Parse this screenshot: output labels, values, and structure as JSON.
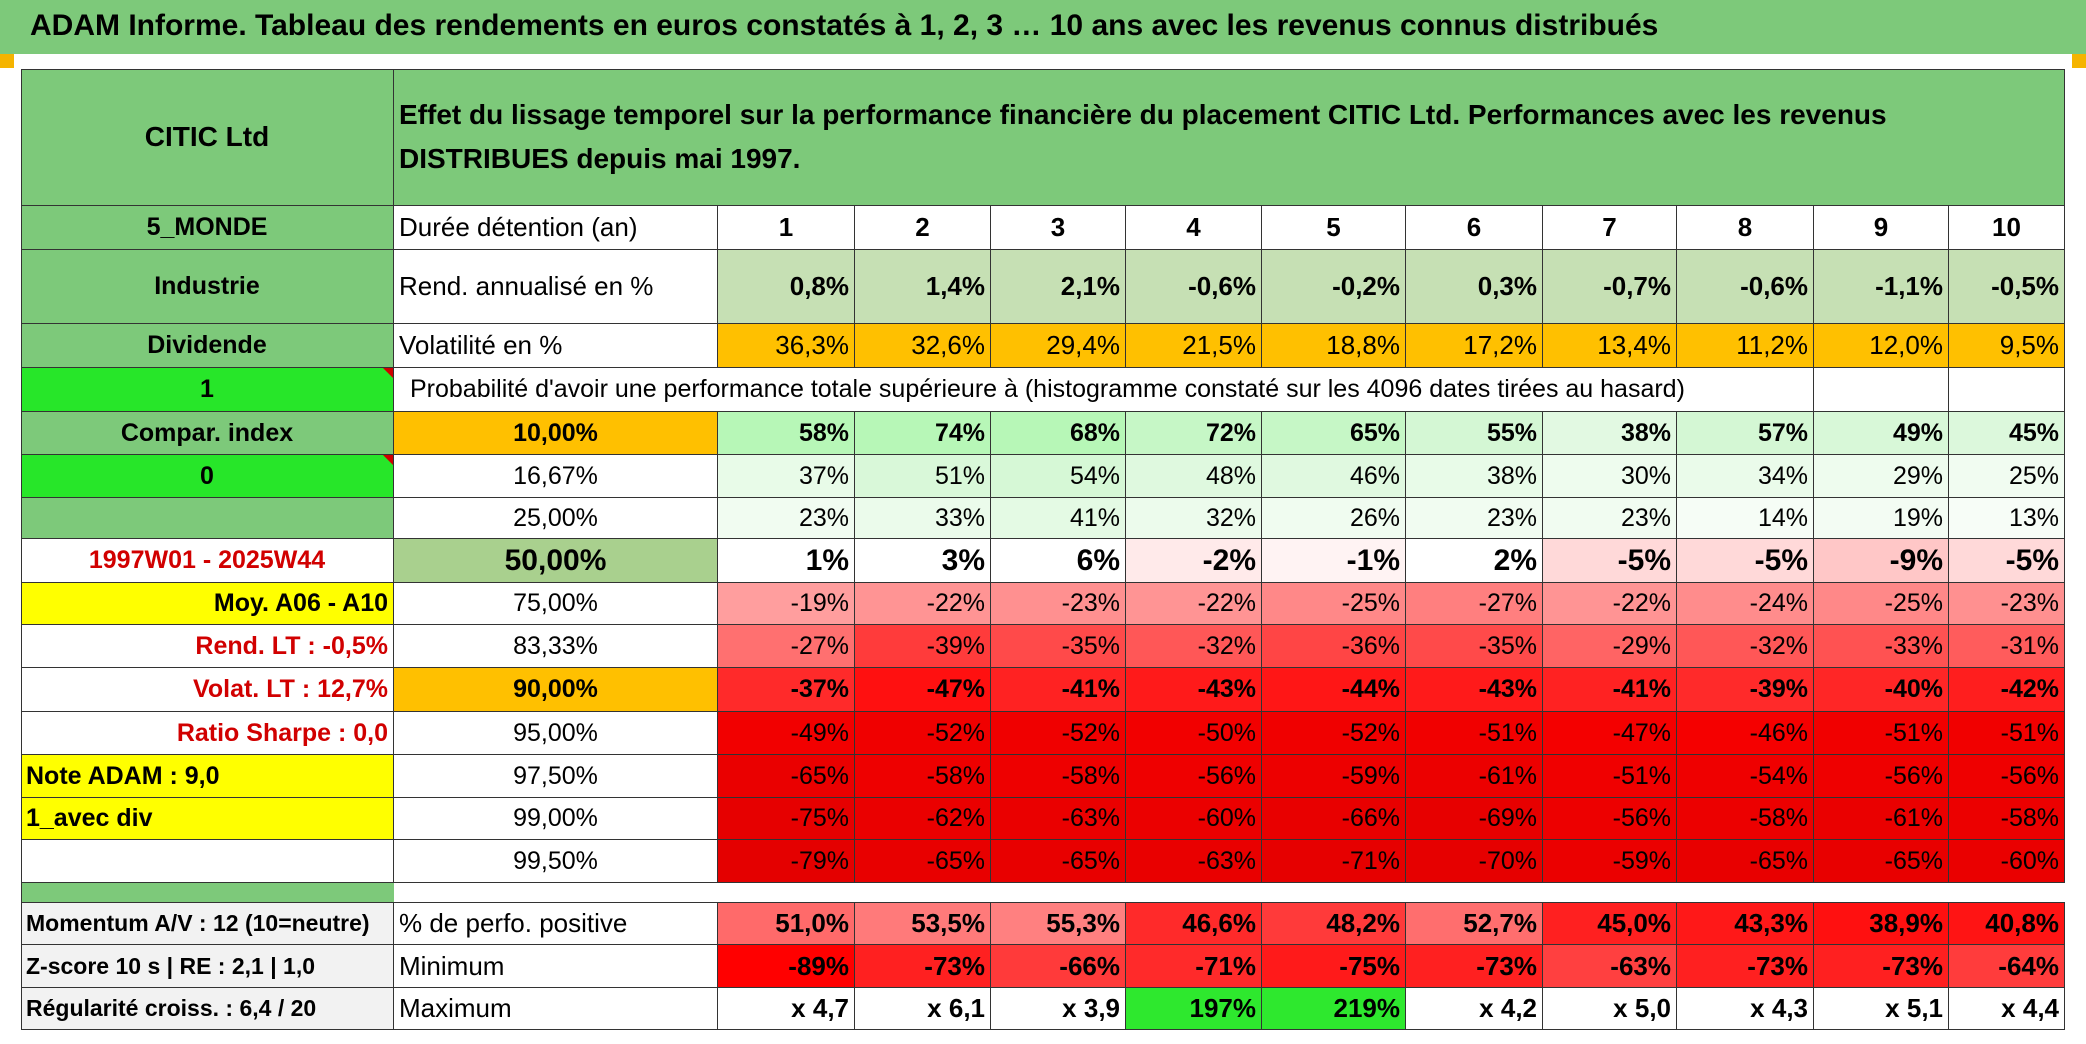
{
  "banner": {
    "title": "ADAM Informe. Tableau des rendements en euros constatés à 1, 2, 3 … 10 ans avec les revenus connus distribués"
  },
  "colors": {
    "green_header": "#7dc97a",
    "bright_green": "#27e629",
    "yellow": "#ffff00",
    "orange": "#ffc000",
    "red_strong": "#ff0000"
  },
  "left": {
    "name": "CITIC Ltd",
    "zone": "5_MONDE",
    "sector": "Industrie",
    "income": "Dividende",
    "flag1": "1",
    "compar": "Compar. index",
    "flag0": "0",
    "period": "1997W01 - 2025W44",
    "moy": "Moy. A06 - A10",
    "rend_lt": "Rend. LT :    -0,5%",
    "volat_lt": "Volat. LT :    12,7%",
    "sharpe": "Ratio Sharpe :    0,0",
    "note": "Note ADAM : 9,0",
    "variant": "1_avec div",
    "momentum": "Momentum A/V : 12 (10=neutre)",
    "zscore": "Z-score 10 s | RE : 2,1 | 1,0",
    "regularite": "Régularité croiss. : 6,4 / 20"
  },
  "header": {
    "description": "Effet du lissage temporel sur la performance financière du placement CITIC Ltd. Performances avec les revenus DISTRIBUES depuis mai 1997."
  },
  "labels": {
    "duree": "Durée détention (an)",
    "rend": "Rend. annualisé en %",
    "volat": "Volatilité en %",
    "proba": "Probabilité d'avoir une performance totale supérieure à (histogramme constaté sur les 4096 dates tirées au hasard)",
    "perfo_pos": "% de perfo. positive",
    "minimum": "Minimum",
    "maximum": "Maximum"
  },
  "years": [
    "1",
    "2",
    "3",
    "4",
    "5",
    "6",
    "7",
    "8",
    "9",
    "10"
  ],
  "rend": [
    "0,8%",
    "1,4%",
    "2,1%",
    "-0,6%",
    "-0,2%",
    "0,3%",
    "-0,7%",
    "-0,6%",
    "-1,1%",
    "-0,5%"
  ],
  "volat": [
    "36,3%",
    "32,6%",
    "29,4%",
    "21,5%",
    "18,8%",
    "17,2%",
    "13,4%",
    "11,2%",
    "12,0%",
    "9,5%"
  ],
  "percentiles": [
    {
      "p": "10,00%",
      "v": [
        "58%",
        "74%",
        "68%",
        "72%",
        "65%",
        "55%",
        "38%",
        "57%",
        "49%",
        "45%"
      ]
    },
    {
      "p": "16,67%",
      "v": [
        "37%",
        "51%",
        "54%",
        "48%",
        "46%",
        "38%",
        "30%",
        "34%",
        "29%",
        "25%"
      ]
    },
    {
      "p": "25,00%",
      "v": [
        "23%",
        "33%",
        "41%",
        "32%",
        "26%",
        "23%",
        "23%",
        "14%",
        "19%",
        "13%"
      ]
    },
    {
      "p": "50,00%",
      "v": [
        "1%",
        "3%",
        "6%",
        "-2%",
        "-1%",
        "2%",
        "-5%",
        "-5%",
        "-9%",
        "-5%"
      ]
    },
    {
      "p": "75,00%",
      "v": [
        "-19%",
        "-22%",
        "-23%",
        "-22%",
        "-25%",
        "-27%",
        "-22%",
        "-24%",
        "-25%",
        "-23%"
      ]
    },
    {
      "p": "83,33%",
      "v": [
        "-27%",
        "-39%",
        "-35%",
        "-32%",
        "-36%",
        "-35%",
        "-29%",
        "-32%",
        "-33%",
        "-31%"
      ]
    },
    {
      "p": "90,00%",
      "v": [
        "-37%",
        "-47%",
        "-41%",
        "-43%",
        "-44%",
        "-43%",
        "-41%",
        "-39%",
        "-40%",
        "-42%"
      ]
    },
    {
      "p": "95,00%",
      "v": [
        "-49%",
        "-52%",
        "-52%",
        "-50%",
        "-52%",
        "-51%",
        "-47%",
        "-46%",
        "-51%",
        "-51%"
      ]
    },
    {
      "p": "97,50%",
      "v": [
        "-65%",
        "-58%",
        "-58%",
        "-56%",
        "-59%",
        "-61%",
        "-51%",
        "-54%",
        "-56%",
        "-56%"
      ]
    },
    {
      "p": "99,00%",
      "v": [
        "-75%",
        "-62%",
        "-63%",
        "-60%",
        "-66%",
        "-69%",
        "-56%",
        "-58%",
        "-61%",
        "-58%"
      ]
    },
    {
      "p": "99,50%",
      "v": [
        "-79%",
        "-65%",
        "-65%",
        "-63%",
        "-71%",
        "-70%",
        "-59%",
        "-65%",
        "-65%",
        "-60%"
      ]
    }
  ],
  "perfo_pos": [
    "51,0%",
    "53,5%",
    "55,3%",
    "46,6%",
    "48,2%",
    "52,7%",
    "45,0%",
    "43,3%",
    "38,9%",
    "40,8%"
  ],
  "minimum": [
    "-89%",
    "-73%",
    "-66%",
    "-71%",
    "-75%",
    "-73%",
    "-63%",
    "-73%",
    "-73%",
    "-64%"
  ],
  "maximum": [
    "x 4,7",
    "x 6,1",
    "x 3,9",
    "197%",
    "219%",
    "x 4,2",
    "x 5,0",
    "x 4,3",
    "x 5,1",
    "x 4,4"
  ]
}
